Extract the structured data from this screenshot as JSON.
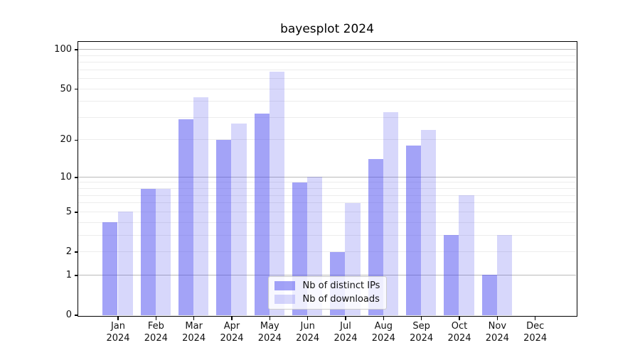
{
  "colors": {
    "background": "#ffffff",
    "spine": "#000000",
    "grid_major": "#b9b9b9",
    "grid_minor": "#ececec",
    "text": "#111111",
    "bar_base": "#4747ef",
    "bar_distinct_ips_rendered": "#a3a3f4",
    "bar_downloads_rendered": "#d9d9f6",
    "legend_border": "#cccccc"
  },
  "chart_data": {
    "type": "bar",
    "title": "bayesplot 2024",
    "categories": [
      "Jan 2024",
      "Feb 2024",
      "Mar 2024",
      "Apr 2024",
      "May 2024",
      "Jun 2024",
      "Jul 2024",
      "Aug 2024",
      "Sep 2024",
      "Oct 2024",
      "Nov 2024",
      "Dec 2024"
    ],
    "series": [
      {
        "name": "Nb of distinct IPs",
        "values": [
          4,
          8,
          29,
          20,
          32,
          9,
          2,
          14,
          18,
          3,
          1,
          0
        ],
        "base_color": "#4747ef",
        "alpha": 0.5
      },
      {
        "name": "Nb of downloads",
        "values": [
          5,
          8,
          43,
          27,
          68,
          10,
          6,
          33,
          24,
          7,
          3,
          0
        ],
        "base_color": "#4747ef",
        "alpha": 0.22
      }
    ],
    "xlabel": "",
    "ylabel": "",
    "yscale": "log1p",
    "ylim": [
      0,
      116
    ],
    "yticks": [
      0,
      1,
      2,
      5,
      10,
      20,
      50,
      100
    ],
    "gridlines": {
      "major": [
        1,
        10,
        100
      ],
      "minor": [
        2,
        3,
        4,
        5,
        6,
        7,
        8,
        9,
        20,
        30,
        40,
        50,
        60,
        70,
        80,
        90
      ]
    },
    "grid": "horizontal",
    "legend_position": "lower center, inside plot"
  }
}
